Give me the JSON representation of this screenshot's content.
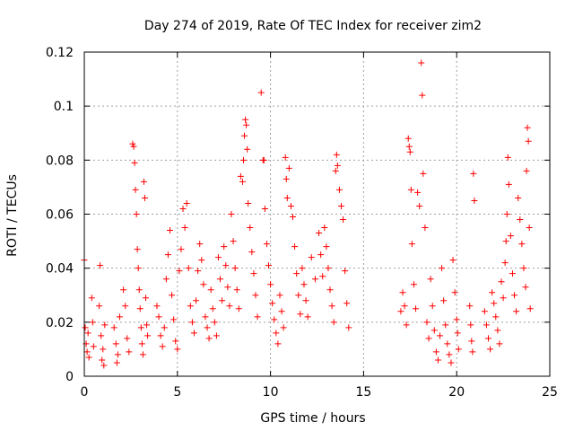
{
  "chart_data": {
    "type": "scatter",
    "title": "Day 274 of 2019, Rate Of TEC Index for receiver zim2",
    "xlabel": "GPS time / hours",
    "ylabel": "ROTI / TECUs",
    "xlim": [
      0,
      25
    ],
    "ylim": [
      0,
      0.12
    ],
    "xticks": [
      0,
      5,
      10,
      15,
      20,
      25
    ],
    "xtick_labels": [
      "0",
      "5",
      "10",
      "15",
      "20",
      "25"
    ],
    "yticks": [
      0,
      0.02,
      0.04,
      0.06,
      0.08,
      0.1,
      0.12
    ],
    "ytick_labels": [
      "0",
      "0.02",
      "0.04",
      "0.06",
      "0.08",
      "0.1",
      "0.12"
    ],
    "grid": true,
    "marker": "+",
    "color": "#ff0000",
    "series": [
      {
        "points": [
          [
            0.0,
            0.043
          ],
          [
            0.05,
            0.018
          ],
          [
            0.1,
            0.012
          ],
          [
            0.15,
            0.009
          ],
          [
            0.2,
            0.016
          ],
          [
            0.25,
            0.007
          ],
          [
            0.4,
            0.029
          ],
          [
            0.45,
            0.02
          ],
          [
            0.5,
            0.011
          ],
          [
            0.8,
            0.026
          ],
          [
            0.85,
            0.041
          ],
          [
            0.9,
            0.015
          ],
          [
            0.95,
            0.006
          ],
          [
            1.0,
            0.01
          ],
          [
            1.05,
            0.004
          ],
          [
            1.1,
            0.019
          ],
          [
            1.6,
            0.018
          ],
          [
            1.7,
            0.012
          ],
          [
            1.75,
            0.005
          ],
          [
            1.8,
            0.008
          ],
          [
            1.9,
            0.022
          ],
          [
            2.1,
            0.032
          ],
          [
            2.2,
            0.026
          ],
          [
            2.3,
            0.014
          ],
          [
            2.4,
            0.009
          ],
          [
            2.6,
            0.086
          ],
          [
            2.65,
            0.085
          ],
          [
            2.7,
            0.079
          ],
          [
            2.75,
            0.069
          ],
          [
            2.8,
            0.06
          ],
          [
            2.85,
            0.047
          ],
          [
            2.9,
            0.04
          ],
          [
            2.95,
            0.032
          ],
          [
            3.0,
            0.025
          ],
          [
            3.05,
            0.018
          ],
          [
            3.1,
            0.012
          ],
          [
            3.15,
            0.008
          ],
          [
            3.2,
            0.072
          ],
          [
            3.25,
            0.066
          ],
          [
            3.3,
            0.029
          ],
          [
            3.35,
            0.019
          ],
          [
            3.4,
            0.015
          ],
          [
            3.9,
            0.026
          ],
          [
            4.0,
            0.022
          ],
          [
            4.1,
            0.015
          ],
          [
            4.2,
            0.011
          ],
          [
            4.3,
            0.018
          ],
          [
            4.4,
            0.036
          ],
          [
            4.5,
            0.045
          ],
          [
            4.6,
            0.054
          ],
          [
            4.7,
            0.03
          ],
          [
            4.8,
            0.021
          ],
          [
            4.9,
            0.013
          ],
          [
            5.0,
            0.01
          ],
          [
            5.1,
            0.039
          ],
          [
            5.2,
            0.047
          ],
          [
            5.3,
            0.062
          ],
          [
            5.4,
            0.055
          ],
          [
            5.5,
            0.064
          ],
          [
            5.6,
            0.04
          ],
          [
            5.7,
            0.026
          ],
          [
            5.8,
            0.02
          ],
          [
            5.9,
            0.016
          ],
          [
            6.0,
            0.028
          ],
          [
            6.1,
            0.039
          ],
          [
            6.2,
            0.049
          ],
          [
            6.3,
            0.043
          ],
          [
            6.4,
            0.034
          ],
          [
            6.5,
            0.022
          ],
          [
            6.6,
            0.018
          ],
          [
            6.7,
            0.014
          ],
          [
            6.8,
            0.032
          ],
          [
            6.9,
            0.025
          ],
          [
            7.0,
            0.02
          ],
          [
            7.1,
            0.015
          ],
          [
            7.2,
            0.044
          ],
          [
            7.3,
            0.036
          ],
          [
            7.4,
            0.028
          ],
          [
            7.5,
            0.048
          ],
          [
            7.6,
            0.041
          ],
          [
            7.7,
            0.033
          ],
          [
            7.8,
            0.026
          ],
          [
            7.9,
            0.06
          ],
          [
            8.0,
            0.05
          ],
          [
            8.1,
            0.04
          ],
          [
            8.2,
            0.032
          ],
          [
            8.3,
            0.025
          ],
          [
            8.4,
            0.074
          ],
          [
            8.5,
            0.072
          ],
          [
            8.55,
            0.08
          ],
          [
            8.6,
            0.089
          ],
          [
            8.65,
            0.095
          ],
          [
            8.7,
            0.093
          ],
          [
            8.75,
            0.084
          ],
          [
            8.8,
            0.064
          ],
          [
            8.9,
            0.055
          ],
          [
            9.0,
            0.046
          ],
          [
            9.1,
            0.038
          ],
          [
            9.2,
            0.03
          ],
          [
            9.3,
            0.022
          ],
          [
            9.5,
            0.105
          ],
          [
            9.6,
            0.08
          ],
          [
            9.65,
            0.08
          ],
          [
            9.7,
            0.062
          ],
          [
            9.8,
            0.049
          ],
          [
            9.9,
            0.041
          ],
          [
            10.0,
            0.034
          ],
          [
            10.1,
            0.027
          ],
          [
            10.2,
            0.021
          ],
          [
            10.3,
            0.016
          ],
          [
            10.4,
            0.012
          ],
          [
            10.5,
            0.03
          ],
          [
            10.6,
            0.024
          ],
          [
            10.7,
            0.018
          ],
          [
            10.8,
            0.081
          ],
          [
            10.85,
            0.073
          ],
          [
            10.9,
            0.066
          ],
          [
            11.0,
            0.077
          ],
          [
            11.1,
            0.063
          ],
          [
            11.2,
            0.059
          ],
          [
            11.3,
            0.048
          ],
          [
            11.4,
            0.038
          ],
          [
            11.5,
            0.03
          ],
          [
            11.6,
            0.023
          ],
          [
            11.7,
            0.04
          ],
          [
            11.8,
            0.034
          ],
          [
            11.9,
            0.028
          ],
          [
            12.0,
            0.022
          ],
          [
            12.2,
            0.044
          ],
          [
            12.4,
            0.036
          ],
          [
            12.6,
            0.053
          ],
          [
            12.7,
            0.045
          ],
          [
            12.8,
            0.037
          ],
          [
            12.9,
            0.055
          ],
          [
            13.0,
            0.048
          ],
          [
            13.1,
            0.04
          ],
          [
            13.2,
            0.032
          ],
          [
            13.3,
            0.026
          ],
          [
            13.4,
            0.02
          ],
          [
            13.5,
            0.076
          ],
          [
            13.55,
            0.082
          ],
          [
            13.6,
            0.078
          ],
          [
            13.7,
            0.069
          ],
          [
            13.8,
            0.063
          ],
          [
            13.9,
            0.058
          ],
          [
            14.0,
            0.039
          ],
          [
            14.1,
            0.027
          ],
          [
            14.2,
            0.018
          ],
          [
            17.0,
            0.024
          ],
          [
            17.1,
            0.031
          ],
          [
            17.2,
            0.026
          ],
          [
            17.3,
            0.019
          ],
          [
            17.4,
            0.088
          ],
          [
            17.45,
            0.085
          ],
          [
            17.5,
            0.083
          ],
          [
            17.55,
            0.069
          ],
          [
            17.6,
            0.049
          ],
          [
            17.7,
            0.034
          ],
          [
            17.8,
            0.025
          ],
          [
            17.9,
            0.068
          ],
          [
            18.0,
            0.063
          ],
          [
            18.1,
            0.116
          ],
          [
            18.15,
            0.104
          ],
          [
            18.2,
            0.075
          ],
          [
            18.3,
            0.055
          ],
          [
            18.4,
            0.02
          ],
          [
            18.5,
            0.014
          ],
          [
            18.6,
            0.036
          ],
          [
            18.7,
            0.026
          ],
          [
            18.8,
            0.017
          ],
          [
            18.9,
            0.009
          ],
          [
            19.0,
            0.006
          ],
          [
            19.1,
            0.015
          ],
          [
            19.2,
            0.04
          ],
          [
            19.3,
            0.028
          ],
          [
            19.4,
            0.019
          ],
          [
            19.5,
            0.012
          ],
          [
            19.6,
            0.008
          ],
          [
            19.7,
            0.005
          ],
          [
            19.8,
            0.043
          ],
          [
            19.9,
            0.031
          ],
          [
            20.0,
            0.021
          ],
          [
            20.05,
            0.016
          ],
          [
            20.1,
            0.01
          ],
          [
            20.7,
            0.026
          ],
          [
            20.75,
            0.019
          ],
          [
            20.8,
            0.013
          ],
          [
            20.85,
            0.009
          ],
          [
            20.9,
            0.075
          ],
          [
            20.95,
            0.065
          ],
          [
            21.5,
            0.024
          ],
          [
            21.6,
            0.019
          ],
          [
            21.7,
            0.014
          ],
          [
            21.8,
            0.01
          ],
          [
            21.9,
            0.031
          ],
          [
            22.0,
            0.027
          ],
          [
            22.1,
            0.022
          ],
          [
            22.2,
            0.017
          ],
          [
            22.3,
            0.012
          ],
          [
            22.4,
            0.035
          ],
          [
            22.5,
            0.029
          ],
          [
            22.6,
            0.042
          ],
          [
            22.65,
            0.05
          ],
          [
            22.7,
            0.06
          ],
          [
            22.75,
            0.081
          ],
          [
            22.8,
            0.071
          ],
          [
            22.9,
            0.052
          ],
          [
            23.0,
            0.038
          ],
          [
            23.1,
            0.03
          ],
          [
            23.2,
            0.024
          ],
          [
            23.3,
            0.066
          ],
          [
            23.4,
            0.058
          ],
          [
            23.5,
            0.049
          ],
          [
            23.6,
            0.04
          ],
          [
            23.7,
            0.033
          ],
          [
            23.75,
            0.076
          ],
          [
            23.8,
            0.092
          ],
          [
            23.85,
            0.087
          ],
          [
            23.9,
            0.055
          ],
          [
            23.95,
            0.025
          ]
        ]
      }
    ]
  }
}
